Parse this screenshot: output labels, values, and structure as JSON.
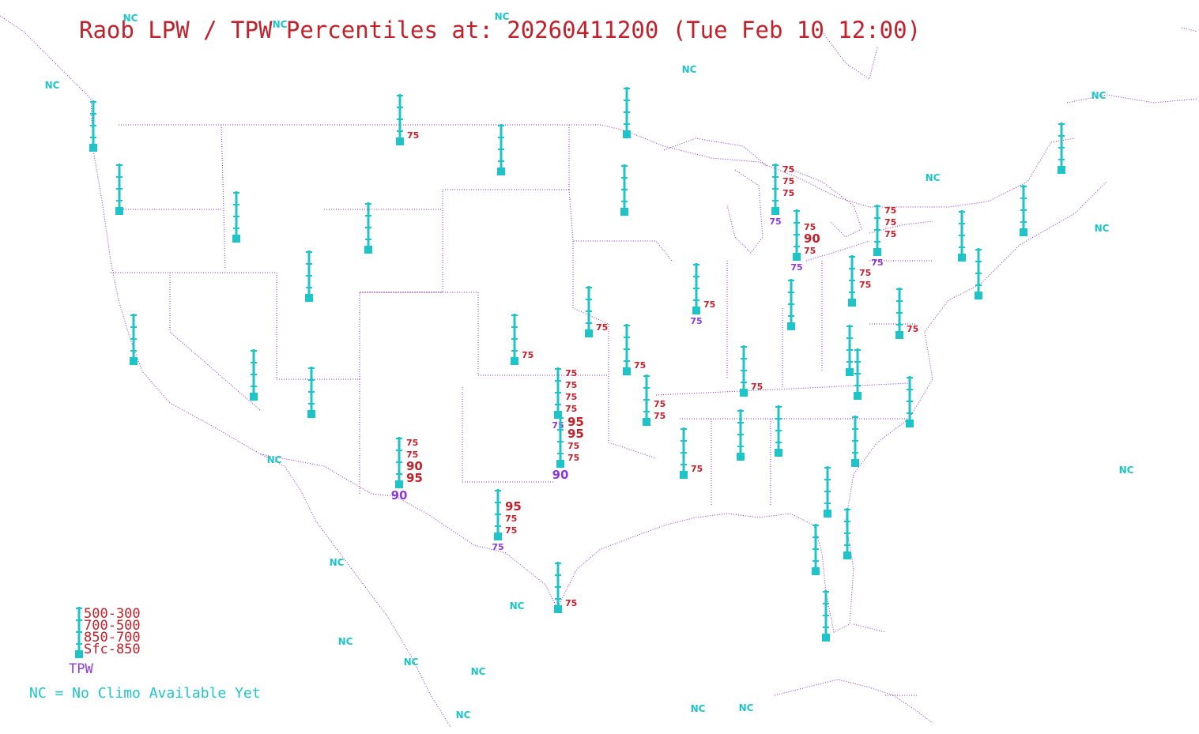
{
  "title": "Raob LPW / TPW Percentiles at: 20260411200 (Tue Feb 10 12:00)",
  "legend": {
    "layers": [
      "500-300",
      "700-500",
      "850-700",
      "Sfc-850"
    ],
    "tpw_label": "TPW",
    "nc_note": "NC = No Climo Available Yet"
  },
  "colors": {
    "station": "#1fc4c8",
    "layer_text": "#c2202a",
    "tpw_text": "#8a3ad6",
    "borders": "#8a28c8"
  },
  "nc_label": "NC",
  "stations": [
    {
      "id": "quillayute",
      "layers": [
        null,
        null,
        null,
        null
      ],
      "tpw": null
    },
    {
      "id": "salem",
      "layers": [
        null,
        null,
        null,
        null
      ],
      "tpw": null
    },
    {
      "id": "boise",
      "layers": [
        null,
        null,
        null,
        null
      ],
      "tpw": null
    },
    {
      "id": "great-falls",
      "layers": [
        null,
        null,
        null,
        "75"
      ],
      "tpw": null
    },
    {
      "id": "bismarck",
      "layers": [
        null,
        null,
        null,
        null
      ],
      "tpw": null
    },
    {
      "id": "riverton",
      "layers": [
        null,
        null,
        null,
        null
      ],
      "tpw": null
    },
    {
      "id": "salt-lake",
      "layers": [
        null,
        null,
        null,
        null
      ],
      "tpw": null
    },
    {
      "id": "oakland",
      "layers": [
        null,
        null,
        null,
        null
      ],
      "tpw": null
    },
    {
      "id": "reno-elko",
      "layers": [
        null,
        null,
        null,
        null
      ],
      "tpw": null
    },
    {
      "id": "flagstaff",
      "layers": [
        null,
        null,
        null,
        null
      ],
      "tpw": null
    },
    {
      "id": "international-falls",
      "layers": [
        null,
        null,
        null,
        null
      ],
      "tpw": null
    },
    {
      "id": "chanhassen",
      "layers": [
        null,
        null,
        null,
        null
      ],
      "tpw": null
    },
    {
      "id": "omaha",
      "layers": [
        null,
        null,
        null,
        "75"
      ],
      "tpw": null
    },
    {
      "id": "dodge-city",
      "layers": [
        null,
        null,
        null,
        "75"
      ],
      "tpw": null
    },
    {
      "id": "norman",
      "layers": [
        "75",
        "75",
        "75",
        "75"
      ],
      "tpw": "75"
    },
    {
      "id": "amarillo-area",
      "layers": [
        "95",
        "95",
        "75",
        "75"
      ],
      "tpw": "90"
    },
    {
      "id": "santa-teresa",
      "layers": [
        "75",
        "75",
        "90",
        "95"
      ],
      "tpw": "90"
    },
    {
      "id": "midland",
      "layers": [
        null,
        "95",
        "75",
        "75"
      ],
      "tpw": "75"
    },
    {
      "id": "corpus-christi",
      "layers": [
        null,
        null,
        null,
        "75"
      ],
      "tpw": null
    },
    {
      "id": "springfield",
      "layers": [
        null,
        null,
        null,
        "75"
      ],
      "tpw": null
    },
    {
      "id": "little-rock",
      "layers": [
        null,
        null,
        "75",
        "75"
      ],
      "tpw": null
    },
    {
      "id": "lake-charles",
      "layers": [
        null,
        null,
        null,
        "75"
      ],
      "tpw": null
    },
    {
      "id": "lincoln-il",
      "layers": [
        null,
        null,
        null,
        "75"
      ],
      "tpw": "75"
    },
    {
      "id": "nashville",
      "layers": [
        null,
        null,
        null,
        "75"
      ],
      "tpw": null
    },
    {
      "id": "jackson",
      "layers": [
        null,
        null,
        null,
        null
      ],
      "tpw": null
    },
    {
      "id": "birmingham",
      "layers": [
        null,
        null,
        null,
        null
      ],
      "tpw": null
    },
    {
      "id": "gaylord",
      "layers": [
        "75",
        "75",
        "75",
        null
      ],
      "tpw": "75"
    },
    {
      "id": "detroit",
      "layers": [
        null,
        "75",
        "90",
        "75"
      ],
      "tpw": "75"
    },
    {
      "id": "wilmington-oh",
      "layers": [
        null,
        null,
        null,
        null
      ],
      "tpw": null
    },
    {
      "id": "pittsburgh",
      "layers": [
        null,
        "75",
        "75",
        null
      ],
      "tpw": null
    },
    {
      "id": "buffalo",
      "layers": [
        "75",
        "75",
        "75",
        null
      ],
      "tpw": "75"
    },
    {
      "id": "sterling",
      "layers": [
        null,
        null,
        null,
        "75"
      ],
      "tpw": null
    },
    {
      "id": "blacksburg",
      "layers": [
        null,
        null,
        null,
        null
      ],
      "tpw": null
    },
    {
      "id": "greensboro",
      "layers": [
        null,
        null,
        null,
        null
      ],
      "tpw": null
    },
    {
      "id": "newport",
      "layers": [
        null,
        null,
        null,
        null
      ],
      "tpw": null
    },
    {
      "id": "charleston",
      "layers": [
        null,
        null,
        null,
        null
      ],
      "tpw": null
    },
    {
      "id": "albany",
      "layers": [
        null,
        null,
        null,
        null
      ],
      "tpw": null
    },
    {
      "id": "upton",
      "layers": [
        null,
        null,
        null,
        null
      ],
      "tpw": null
    },
    {
      "id": "gray",
      "layers": [
        null,
        null,
        null,
        null
      ],
      "tpw": null
    },
    {
      "id": "caribou",
      "layers": [
        null,
        null,
        null,
        null
      ],
      "tpw": null
    },
    {
      "id": "jacksonville",
      "layers": [
        null,
        null,
        null,
        null
      ],
      "tpw": null
    },
    {
      "id": "tampa",
      "layers": [
        null,
        null,
        null,
        null
      ],
      "tpw": null
    },
    {
      "id": "cape-canaveral",
      "layers": [
        null,
        null,
        null,
        null
      ],
      "tpw": null
    },
    {
      "id": "miami",
      "layers": [
        null,
        null,
        null,
        null
      ],
      "tpw": null
    }
  ]
}
